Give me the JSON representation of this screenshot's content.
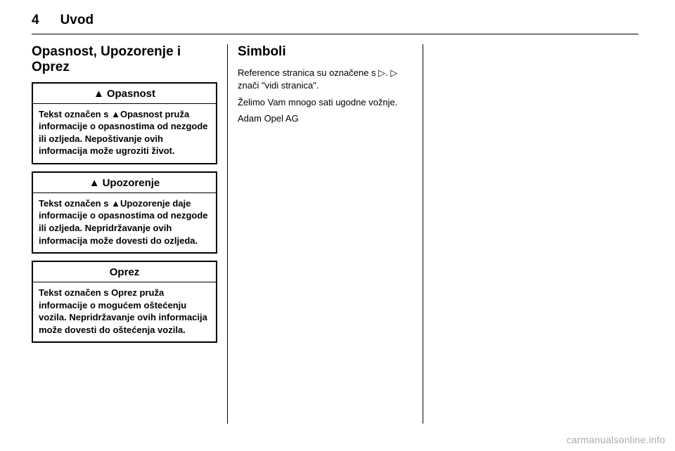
{
  "header": {
    "page_number": "4",
    "chapter": "Uvod"
  },
  "col1": {
    "title": "Opasnost, Upozorenje i Oprez",
    "box1": {
      "icon": "▲",
      "head": "Opasnost",
      "body_pref": "Tekst označen s ",
      "body_icon": "▲",
      "body_bold": "Opasnost",
      "body_rest": " pruža informacije o opasnostima od nezgode ili ozljeda. Nepoštivanje ovih informacija može ugroziti život."
    },
    "box2": {
      "icon": "▲",
      "head": "Upozorenje",
      "body_pref": "Tekst označen s ",
      "body_icon": "▲",
      "body_bold": "Upozorenje",
      "body_rest": " daje informacije o opasnostima od nezgode ili ozljeda. Nepridržavanje ovih informacija može dovesti do ozljeda."
    },
    "box3": {
      "head": "Oprez",
      "body": "Tekst označen s Oprez pruža informacije o mogućem oštećenju vozila. Nepridržavanje ovih informacija može dovesti do oštećenja vozila."
    }
  },
  "col2": {
    "title": "Simboli",
    "p1a": "Reference stranica su označene s ",
    "p1sym": "▷",
    "p1b": ". ",
    "p1c": " znači \"vidi stranica\".",
    "p2": "Želimo Vam mnogo sati ugodne vožnje.",
    "sig": "Adam Opel AG"
  },
  "watermark": "carmanualsonline.info"
}
